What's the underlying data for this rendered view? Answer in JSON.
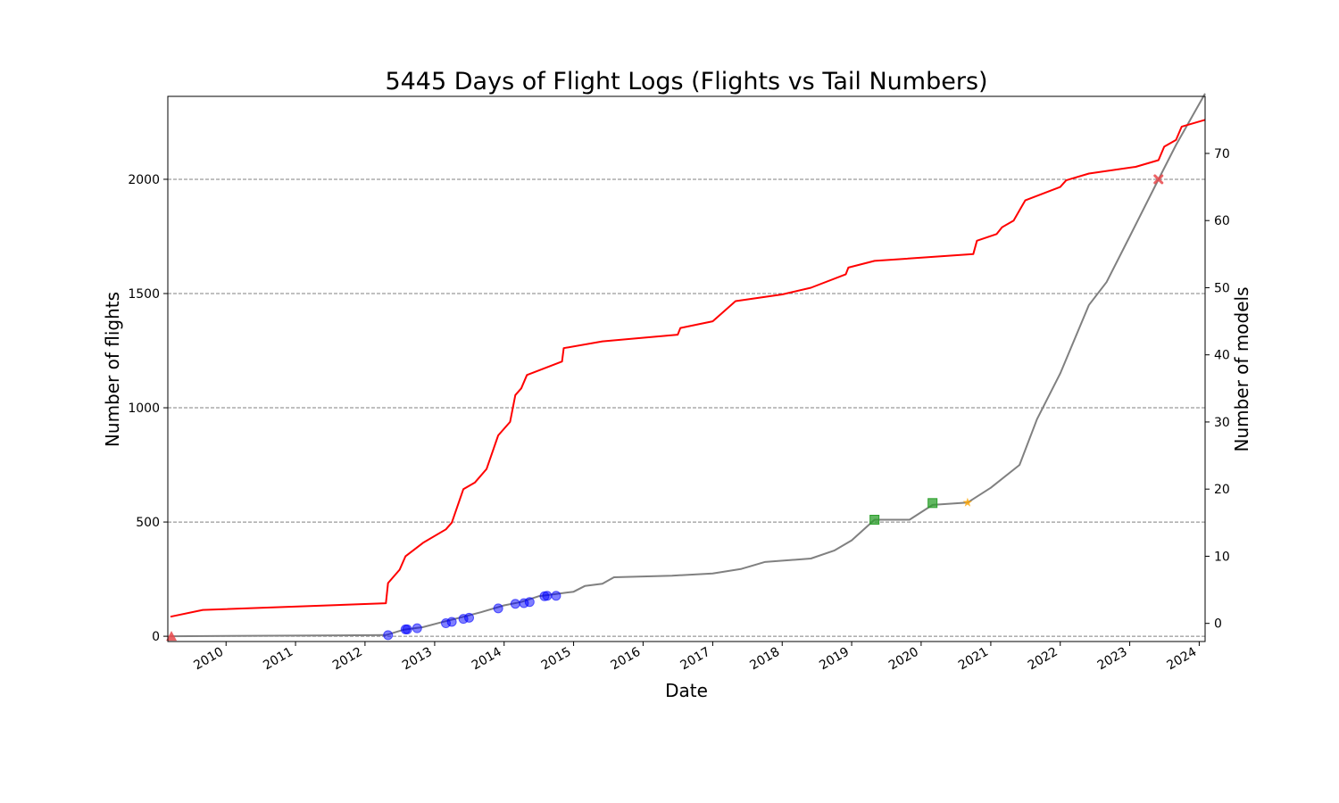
{
  "chart_data": {
    "type": "line",
    "title": "5445 Days of Flight Logs (Flights vs Tail Numbers)",
    "xlabel": "Date",
    "ylabel_left": "Number of flights",
    "ylabel_right": "Number of models",
    "colors": {
      "flights_line": "#808080",
      "models_line": "#ff0000",
      "right_axis_label": "#ff0000",
      "grid": "#808080",
      "marker_blue": "#0000ff",
      "marker_green": "#2ca02c",
      "marker_orange": "#ffa500",
      "marker_red": "#e8474a"
    },
    "x_range": [
      "2009-03-01",
      "2024-02-01"
    ],
    "x_ticks": [
      "2010",
      "2011",
      "2012",
      "2013",
      "2014",
      "2015",
      "2016",
      "2017",
      "2018",
      "2019",
      "2020",
      "2021",
      "2022",
      "2023",
      "2024"
    ],
    "ylim_left": [
      -23,
      2363
    ],
    "yticks_left": [
      0,
      500,
      1000,
      1500,
      2000
    ],
    "ylim_right": [
      -2.7,
      78.5
    ],
    "yticks_right": [
      0,
      10,
      20,
      30,
      40,
      50,
      60,
      70
    ],
    "grid": "horizontal dashed at left-axis ticks",
    "series": [
      {
        "axis": "left",
        "values": [
          [
            "2009-03-15",
            0
          ],
          [
            "2012-04-20",
            5
          ],
          [
            "2012-07-20",
            28
          ],
          [
            "2012-11-01",
            40
          ],
          [
            "2013-02-01",
            60
          ],
          [
            "2013-06-01",
            85
          ],
          [
            "2013-09-01",
            105
          ],
          [
            "2014-01-01",
            135
          ],
          [
            "2014-04-01",
            150
          ],
          [
            "2014-07-01",
            175
          ],
          [
            "2014-10-01",
            185
          ],
          [
            "2015-01-01",
            195
          ],
          [
            "2015-03-01",
            220
          ],
          [
            "2015-06-01",
            230
          ],
          [
            "2015-08-01",
            258
          ],
          [
            "2016-06-01",
            265
          ],
          [
            "2017-01-01",
            275
          ],
          [
            "2017-06-01",
            295
          ],
          [
            "2017-10-01",
            325
          ],
          [
            "2018-06-01",
            340
          ],
          [
            "2018-10-01",
            375
          ],
          [
            "2019-01-01",
            420
          ],
          [
            "2019-05-01",
            510
          ],
          [
            "2019-11-01",
            510
          ],
          [
            "2020-03-01",
            575
          ],
          [
            "2020-09-01",
            585
          ],
          [
            "2021-01-01",
            650
          ],
          [
            "2021-06-01",
            750
          ],
          [
            "2021-09-01",
            950
          ],
          [
            "2022-01-01",
            1150
          ],
          [
            "2022-06-01",
            1450
          ],
          [
            "2022-09-01",
            1550
          ],
          [
            "2023-01-01",
            1750
          ],
          [
            "2023-06-01",
            2000
          ],
          [
            "2023-09-01",
            2150
          ],
          [
            "2024-02-01",
            2375
          ]
        ]
      },
      {
        "axis": "right",
        "values": [
          [
            "2009-03-15",
            1
          ],
          [
            "2009-09-01",
            2
          ],
          [
            "2012-04-20",
            3
          ],
          [
            "2012-05-01",
            6
          ],
          [
            "2012-07-01",
            8
          ],
          [
            "2012-08-01",
            10
          ],
          [
            "2012-11-01",
            12
          ],
          [
            "2013-03-01",
            14
          ],
          [
            "2013-04-01",
            15
          ],
          [
            "2013-06-01",
            20
          ],
          [
            "2013-08-01",
            21
          ],
          [
            "2013-10-01",
            23
          ],
          [
            "2013-12-01",
            28
          ],
          [
            "2014-02-01",
            30
          ],
          [
            "2014-03-01",
            34
          ],
          [
            "2014-04-01",
            35
          ],
          [
            "2014-05-01",
            37
          ],
          [
            "2014-11-01",
            39
          ],
          [
            "2014-11-10",
            41
          ],
          [
            "2015-06-01",
            42
          ],
          [
            "2016-07-01",
            43
          ],
          [
            "2016-07-15",
            44
          ],
          [
            "2017-01-01",
            45
          ],
          [
            "2017-05-01",
            48
          ],
          [
            "2018-01-01",
            49
          ],
          [
            "2018-06-01",
            50
          ],
          [
            "2018-12-01",
            52
          ],
          [
            "2018-12-15",
            53
          ],
          [
            "2019-05-01",
            54
          ],
          [
            "2020-10-01",
            55
          ],
          [
            "2020-10-20",
            57
          ],
          [
            "2021-02-01",
            58
          ],
          [
            "2021-03-01",
            59
          ],
          [
            "2021-05-01",
            60
          ],
          [
            "2021-07-01",
            63
          ],
          [
            "2022-01-01",
            65
          ],
          [
            "2022-02-01",
            66
          ],
          [
            "2022-06-01",
            67
          ],
          [
            "2023-02-01",
            68
          ],
          [
            "2023-06-01",
            69
          ],
          [
            "2023-07-01",
            71
          ],
          [
            "2023-09-01",
            72
          ],
          [
            "2023-10-01",
            74
          ],
          [
            "2024-02-01",
            75
          ]
        ]
      }
    ],
    "markers": [
      {
        "date": "2009-03-20",
        "value": 0,
        "shape": "triangle",
        "color": "#e8474a"
      },
      {
        "date": "2012-05-01",
        "value": 5,
        "shape": "circle",
        "color": "#0000ff"
      },
      {
        "date": "2012-08-01",
        "value": 30,
        "shape": "circle",
        "color": "#0000ff"
      },
      {
        "date": "2012-08-10",
        "value": 30,
        "shape": "circle",
        "color": "#0000ff"
      },
      {
        "date": "2012-10-01",
        "value": 35,
        "shape": "circle",
        "color": "#0000ff"
      },
      {
        "date": "2013-03-01",
        "value": 57,
        "shape": "circle",
        "color": "#0000ff"
      },
      {
        "date": "2013-04-01",
        "value": 63,
        "shape": "circle",
        "color": "#0000ff"
      },
      {
        "date": "2013-06-01",
        "value": 76,
        "shape": "circle",
        "color": "#0000ff"
      },
      {
        "date": "2013-07-01",
        "value": 81,
        "shape": "circle",
        "color": "#0000ff"
      },
      {
        "date": "2013-12-01",
        "value": 122,
        "shape": "circle",
        "color": "#0000ff"
      },
      {
        "date": "2014-03-01",
        "value": 142,
        "shape": "circle",
        "color": "#0000ff"
      },
      {
        "date": "2014-04-15",
        "value": 145,
        "shape": "circle",
        "color": "#0000ff"
      },
      {
        "date": "2014-05-15",
        "value": 150,
        "shape": "circle",
        "color": "#0000ff"
      },
      {
        "date": "2014-08-01",
        "value": 175,
        "shape": "circle",
        "color": "#0000ff"
      },
      {
        "date": "2014-08-15",
        "value": 177,
        "shape": "circle",
        "color": "#0000ff"
      },
      {
        "date": "2014-10-01",
        "value": 177,
        "shape": "circle",
        "color": "#0000ff"
      },
      {
        "date": "2019-05-01",
        "value": 510,
        "shape": "square",
        "color": "#2ca02c"
      },
      {
        "date": "2020-03-01",
        "value": 583,
        "shape": "square",
        "color": "#2ca02c"
      },
      {
        "date": "2020-09-01",
        "value": 585,
        "shape": "star",
        "color": "#ffa500"
      },
      {
        "date": "2023-06-01",
        "value": 2000,
        "shape": "x",
        "color": "#e8474a"
      }
    ]
  }
}
